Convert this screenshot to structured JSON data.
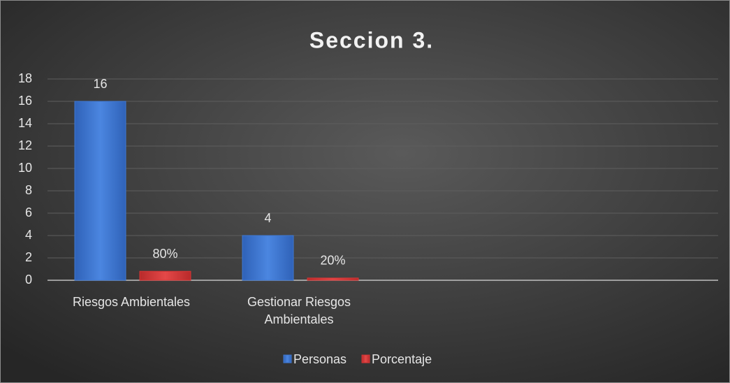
{
  "chart_data": {
    "type": "bar",
    "title": "Seccion 3.",
    "categories": [
      "Riesgos Ambientales",
      "Gestionar Riesgos Ambientales",
      null,
      null
    ],
    "series": [
      {
        "name": "Personas",
        "color": "#3f78d2",
        "values": [
          16,
          4,
          null,
          null
        ]
      },
      {
        "name": "Porcentaje",
        "color": "#d73535",
        "values": [
          0.8,
          0.2,
          null,
          null
        ],
        "value_labels": [
          "80%",
          "20%",
          null,
          null
        ]
      }
    ],
    "ylim": [
      0,
      18
    ],
    "yticks": [
      0,
      2,
      4,
      6,
      8,
      10,
      12,
      14,
      16,
      18
    ],
    "grid": true,
    "legend": "bottom"
  }
}
